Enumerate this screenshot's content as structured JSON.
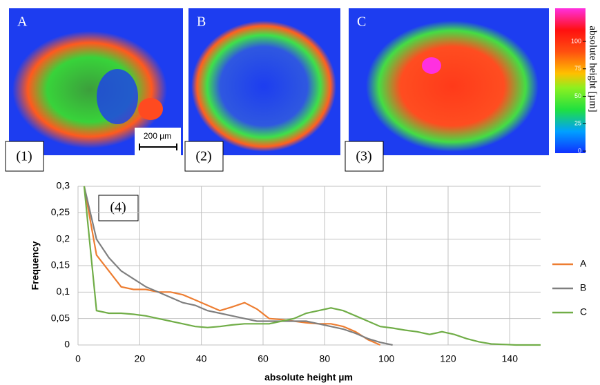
{
  "panels": [
    {
      "letter": "A",
      "number": "(1)"
    },
    {
      "letter": "B",
      "number": "(2)"
    },
    {
      "letter": "C",
      "number": "(3)"
    }
  ],
  "scale_bar": "200 µm",
  "colorbar": {
    "label": "absolute height [µm]",
    "ticks": [
      0,
      25,
      50,
      75,
      100
    ]
  },
  "chart_data": {
    "type": "line",
    "annotation": "(4)",
    "x_label": "absolute height µm",
    "y_label": "Frequency",
    "x": [
      2,
      6,
      10,
      14,
      18,
      22,
      26,
      30,
      34,
      38,
      42,
      46,
      50,
      54,
      58,
      62,
      66,
      70,
      74,
      78,
      82,
      86,
      90,
      94,
      98,
      102,
      106,
      110,
      114,
      118,
      122,
      126,
      130,
      134,
      138,
      142,
      146,
      150
    ],
    "series": [
      {
        "name": "A",
        "color": "#ed7d31",
        "values": [
          0.3,
          0.17,
          0.14,
          0.11,
          0.105,
          0.105,
          0.1,
          0.1,
          0.095,
          0.085,
          0.075,
          0.065,
          0.072,
          0.08,
          0.068,
          0.05,
          0.048,
          0.045,
          0.042,
          0.04,
          0.04,
          0.035,
          0.025,
          0.01,
          0,
          null,
          null,
          null,
          null,
          null,
          null,
          null,
          null,
          null,
          null,
          null,
          null,
          null
        ]
      },
      {
        "name": "B",
        "color": "#7f7f7f",
        "values": [
          0.3,
          0.2,
          0.165,
          0.14,
          0.125,
          0.11,
          0.1,
          0.09,
          0.08,
          0.075,
          0.065,
          0.06,
          0.055,
          0.05,
          0.045,
          0.045,
          0.045,
          0.045,
          0.045,
          0.04,
          0.035,
          0.03,
          0.022,
          0.012,
          0.005,
          0,
          null,
          null,
          null,
          null,
          null,
          null,
          null,
          null,
          null,
          null,
          null,
          null
        ]
      },
      {
        "name": "C",
        "color": "#70ad47",
        "values": [
          0.3,
          0.065,
          0.06,
          0.06,
          0.058,
          0.055,
          0.05,
          0.045,
          0.04,
          0.035,
          0.033,
          0.035,
          0.038,
          0.04,
          0.04,
          0.04,
          0.045,
          0.05,
          0.06,
          0.065,
          0.07,
          0.065,
          0.055,
          0.045,
          0.035,
          0.032,
          0.028,
          0.025,
          0.02,
          0.025,
          0.02,
          0.012,
          0.006,
          0.002,
          0.001,
          0,
          0,
          0
        ]
      }
    ],
    "xlim": [
      0,
      150
    ],
    "xticks": [
      0,
      20,
      40,
      60,
      80,
      100,
      120,
      140
    ],
    "ylim": [
      0,
      0.3
    ],
    "yticks": [
      0,
      {
        "value": 0.05,
        "label": "0,05"
      },
      {
        "value": 0.1,
        "label": "0,1"
      },
      {
        "value": 0.15,
        "label": "0,15"
      },
      {
        "value": 0.2,
        "label": "0,2"
      },
      {
        "value": 0.25,
        "label": "0,25"
      },
      {
        "value": 0.3,
        "label": "0,3"
      }
    ],
    "grid": true,
    "legend": "right"
  }
}
